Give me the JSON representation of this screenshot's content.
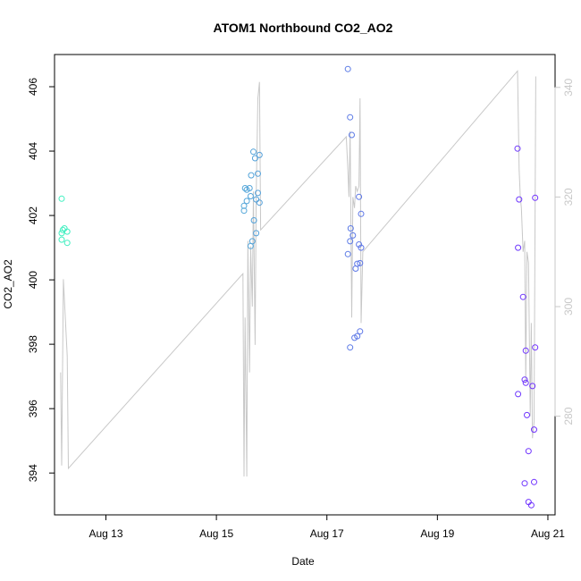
{
  "chart_data": {
    "type": "scatter",
    "title": "ATOM1 Northbound CO2_AO2",
    "xlabel": "Date",
    "ylabel": "CO2_AO2",
    "x_ticks": [
      "Aug 13",
      "Aug 15",
      "Aug 17",
      "Aug 19",
      "Aug 21"
    ],
    "x_tick_days": [
      13,
      15,
      17,
      19,
      21
    ],
    "xlim": [
      12.07,
      21.13
    ],
    "ylim": [
      392.7,
      407.0
    ],
    "y_ticks": [
      394,
      396,
      398,
      400,
      402,
      404,
      406
    ],
    "y2lim": [
      262,
      346
    ],
    "y2_ticks": [
      280,
      300,
      320,
      340
    ],
    "grid": false,
    "series": [
      {
        "kind": "points",
        "color_start": "#40f0c0",
        "color_end": "#7030ff",
        "points": [
          [
            12.2,
            402.52
          ],
          [
            12.22,
            401.55
          ],
          [
            12.25,
            401.6
          ],
          [
            12.2,
            401.45
          ],
          [
            12.3,
            401.5
          ],
          [
            12.2,
            401.25
          ],
          [
            12.3,
            401.15
          ],
          [
            15.5,
            402.3
          ],
          [
            15.52,
            402.85
          ],
          [
            15.55,
            402.8
          ],
          [
            15.6,
            402.85
          ],
          [
            15.5,
            402.15
          ],
          [
            15.55,
            402.45
          ],
          [
            15.62,
            402.6
          ],
          [
            15.63,
            403.25
          ],
          [
            15.67,
            403.98
          ],
          [
            15.7,
            403.78
          ],
          [
            15.75,
            403.3
          ],
          [
            15.78,
            403.88
          ],
          [
            15.75,
            402.7
          ],
          [
            15.72,
            402.5
          ],
          [
            15.78,
            402.4
          ],
          [
            15.68,
            401.85
          ],
          [
            15.72,
            401.45
          ],
          [
            15.65,
            401.2
          ],
          [
            15.62,
            401.05
          ],
          [
            17.38,
            406.55
          ],
          [
            17.42,
            405.05
          ],
          [
            17.45,
            404.5
          ],
          [
            17.58,
            402.58
          ],
          [
            17.62,
            402.05
          ],
          [
            17.43,
            401.6
          ],
          [
            17.47,
            401.38
          ],
          [
            17.42,
            401.2
          ],
          [
            17.58,
            401.1
          ],
          [
            17.62,
            401.0
          ],
          [
            17.38,
            400.8
          ],
          [
            17.55,
            400.5
          ],
          [
            17.6,
            400.52
          ],
          [
            17.52,
            400.35
          ],
          [
            17.6,
            398.4
          ],
          [
            17.55,
            398.25
          ],
          [
            17.5,
            398.2
          ],
          [
            17.42,
            397.9
          ],
          [
            20.45,
            404.08
          ],
          [
            20.48,
            402.5
          ],
          [
            20.46,
            401.0
          ],
          [
            20.55,
            399.47
          ],
          [
            20.6,
            397.8
          ],
          [
            20.77,
            397.9
          ],
          [
            20.58,
            396.9
          ],
          [
            20.6,
            396.8
          ],
          [
            20.72,
            396.7
          ],
          [
            20.46,
            396.45
          ],
          [
            20.62,
            395.8
          ],
          [
            20.75,
            395.35
          ],
          [
            20.65,
            394.68
          ],
          [
            20.58,
            393.68
          ],
          [
            20.75,
            393.72
          ],
          [
            20.65,
            393.1
          ],
          [
            20.7,
            393.0
          ],
          [
            20.77,
            402.55
          ]
        ]
      },
      {
        "kind": "line",
        "axis": "right",
        "color": "#c8c8c8",
        "points": [
          [
            12.18,
            288
          ],
          [
            12.2,
            271
          ],
          [
            12.23,
            305
          ],
          [
            12.3,
            291
          ],
          [
            12.32,
            270.5
          ],
          [
            15.48,
            306
          ],
          [
            15.5,
            269
          ],
          [
            15.52,
            298
          ],
          [
            15.55,
            269
          ],
          [
            15.57,
            312
          ],
          [
            15.6,
            288
          ],
          [
            15.62,
            311
          ],
          [
            15.65,
            300
          ],
          [
            15.67,
            321
          ],
          [
            15.7,
            293
          ],
          [
            15.72,
            320
          ],
          [
            15.75,
            338
          ],
          [
            15.78,
            341
          ],
          [
            15.8,
            314
          ],
          [
            17.35,
            331
          ],
          [
            17.38,
            325
          ],
          [
            17.4,
            320
          ],
          [
            17.42,
            332
          ],
          [
            17.45,
            298
          ],
          [
            17.47,
            320
          ],
          [
            17.5,
            318
          ],
          [
            17.52,
            322
          ],
          [
            17.55,
            321
          ],
          [
            17.58,
            322
          ],
          [
            17.6,
            338
          ],
          [
            17.62,
            297
          ],
          [
            17.65,
            310
          ],
          [
            20.45,
            343
          ],
          [
            20.48,
            325
          ],
          [
            20.5,
            320
          ],
          [
            20.52,
            318
          ],
          [
            20.55,
            310
          ],
          [
            20.58,
            312
          ],
          [
            20.6,
            286
          ],
          [
            20.62,
            310
          ],
          [
            20.65,
            308
          ],
          [
            20.68,
            280
          ],
          [
            20.7,
            297
          ],
          [
            20.72,
            276
          ],
          [
            20.75,
            279
          ],
          [
            20.78,
            342
          ]
        ]
      }
    ]
  }
}
